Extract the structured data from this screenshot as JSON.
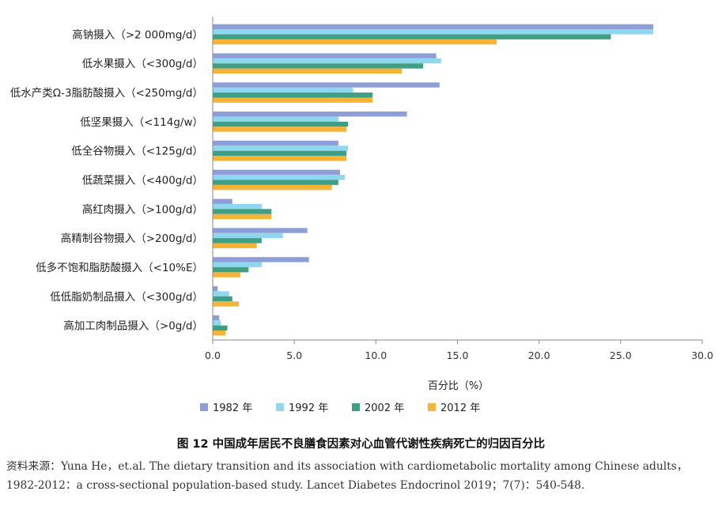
{
  "chart_data": {
    "type": "bar",
    "orientation": "horizontal",
    "categories": [
      "高钠摄入（>2 000mg/d）",
      "低水果摄入（<300g/d）",
      "低水产类Ω-3脂肪酸摄入（<250mg/d）",
      "低坚果摄入（<114g/w）",
      "低全谷物摄入（<125g/d）",
      "低蔬菜摄入（<400g/d）",
      "高红肉摄入（>100g/d）",
      "高精制谷物摄入（>200g/d）",
      "低多不饱和脂肪酸摄入（<10%E）",
      "低低脂奶制品摄入（<300g/d）",
      "高加工肉制品摄入（>0g/d）"
    ],
    "series": [
      {
        "name": "1982 年",
        "color": "#8e9ed6",
        "values": [
          27.0,
          13.7,
          13.9,
          11.9,
          7.7,
          7.8,
          1.2,
          5.8,
          5.9,
          0.3,
          0.4
        ]
      },
      {
        "name": "1992 年",
        "color": "#8fd7ee",
        "values": [
          27.0,
          14.0,
          8.6,
          7.7,
          8.3,
          8.1,
          3.0,
          4.3,
          3.0,
          1.0,
          0.5
        ]
      },
      {
        "name": "2002 年",
        "color": "#3f9f84",
        "values": [
          24.4,
          12.9,
          9.8,
          8.3,
          8.2,
          7.7,
          3.6,
          3.0,
          2.2,
          1.2,
          0.9
        ]
      },
      {
        "name": "2012 年",
        "color": "#f5b338",
        "values": [
          17.4,
          11.6,
          9.8,
          8.2,
          8.2,
          7.3,
          3.6,
          2.7,
          1.7,
          1.6,
          0.8
        ]
      }
    ],
    "xlim": [
      0,
      30
    ],
    "xticks": [
      "0.0",
      "5.0",
      "10.0",
      "15.0",
      "20.0",
      "25.0",
      "30.0"
    ],
    "xlabel": "百分比（%）",
    "grid": false,
    "legend_position": "bottom"
  },
  "figure": {
    "caption": "图 12   中国成年居民不良膳食因素对心血管代谢性疾病死亡的归因百分比",
    "source": "资料来源：Yuna He，et.al. The dietary transition and its association with cardiometabolic mortality among Chinese adults，1982-2012：a cross-sectional population-based study. Lancet Diabetes Endocrinol 2019；7(7)：540-548."
  }
}
